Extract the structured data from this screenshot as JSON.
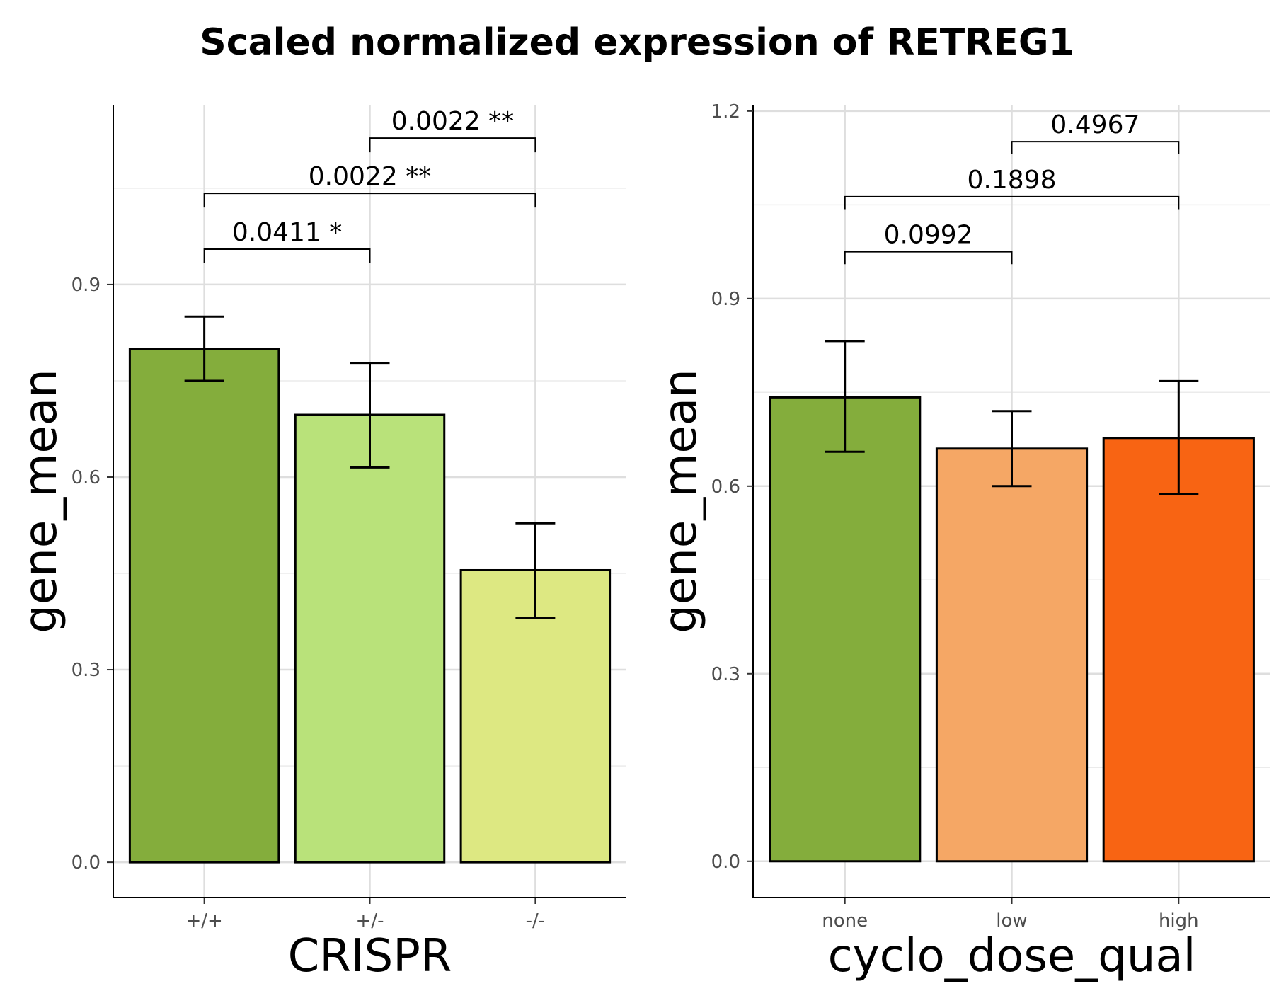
{
  "title": "Scaled normalized expression of RETREG1",
  "chart_data": [
    {
      "type": "bar",
      "xlabel": "CRISPR",
      "ylabel": "gene_mean",
      "ylim": [
        -0.055,
        1.18
      ],
      "yticks": [
        0.0,
        0.3,
        0.6,
        0.9
      ],
      "ytick_labels": [
        "0.0",
        "0.3",
        "0.6",
        "0.9"
      ],
      "categories": [
        "+/+",
        "+/-",
        "-/-"
      ],
      "values": [
        0.8,
        0.697,
        0.455
      ],
      "err_low": [
        0.75,
        0.615,
        0.38
      ],
      "err_high": [
        0.85,
        0.778,
        0.528
      ],
      "colors": [
        "#84AD3C",
        "#B9E27A",
        "#DDE882"
      ],
      "comparisons": [
        {
          "from": 0,
          "to": 1,
          "y": 0.955,
          "drop": 0.022,
          "label": "0.0411 *"
        },
        {
          "from": 0,
          "to": 2,
          "y": 1.042,
          "drop": 0.022,
          "label": "0.0022 **"
        },
        {
          "from": 1,
          "to": 2,
          "y": 1.128,
          "drop": 0.022,
          "label": "0.0022 **"
        }
      ]
    },
    {
      "type": "bar",
      "xlabel": "cyclo_dose_qual",
      "ylabel": "gene_mean",
      "ylim": [
        -0.058,
        1.21
      ],
      "yticks": [
        0.0,
        0.3,
        0.6,
        0.9,
        1.2
      ],
      "ytick_labels": [
        "0.0",
        "0.3",
        "0.6",
        "0.9",
        "1.2"
      ],
      "categories": [
        "none",
        "low",
        "high"
      ],
      "values": [
        0.742,
        0.66,
        0.677
      ],
      "err_low": [
        0.655,
        0.6,
        0.587
      ],
      "err_high": [
        0.832,
        0.72,
        0.768
      ],
      "colors": [
        "#84AD3C",
        "#F5A765",
        "#F86413"
      ],
      "comparisons": [
        {
          "from": 0,
          "to": 1,
          "y": 0.975,
          "drop": 0.02,
          "label": "0.0992"
        },
        {
          "from": 0,
          "to": 2,
          "y": 1.063,
          "drop": 0.02,
          "label": "0.1898"
        },
        {
          "from": 1,
          "to": 2,
          "y": 1.151,
          "drop": 0.02,
          "label": "0.4967"
        }
      ]
    }
  ]
}
